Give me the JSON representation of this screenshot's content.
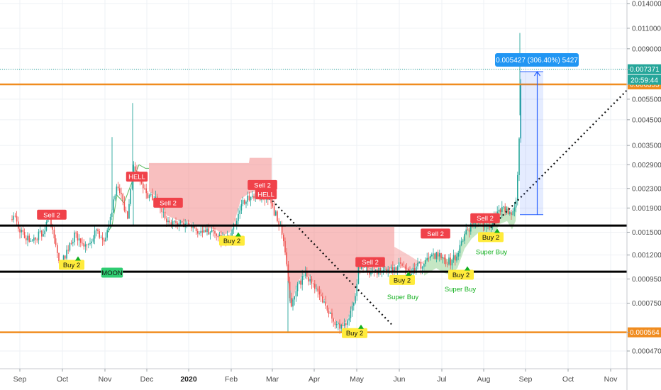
{
  "chart_data": {
    "type": "candlestick",
    "symbol_price_scale": "log",
    "y_ticks": [
      "0.014000",
      "0.011000",
      "0.009000",
      "0.007371",
      "0.006355",
      "0.005500",
      "0.004500",
      "0.003500",
      "0.002900",
      "0.002300",
      "0.001900",
      "0.001500",
      "0.001200",
      "0.000950",
      "0.000750",
      "0.000564",
      "0.000470"
    ],
    "x_ticks": [
      "Sep",
      "Oct",
      "Nov",
      "Dec",
      "2020",
      "Feb",
      "Mar",
      "Apr",
      "May",
      "Jun",
      "Jul",
      "Aug",
      "Sep",
      "Oct",
      "Nov"
    ],
    "current_price": "0.007371",
    "countdown": "20:59:44",
    "horizontal_levels": [
      {
        "price": "0.006355",
        "color": "#f08c1f",
        "label": "0.006355"
      },
      {
        "price": "0.000564",
        "color": "#f08c1f",
        "label": "0.000564"
      },
      {
        "price": "0.001600",
        "color": "#000000"
      },
      {
        "price": "0.001020",
        "color": "#000000"
      }
    ],
    "measure_label": "0.005427 (306.40%) 5427",
    "signals": [
      {
        "text": "Sell 2",
        "type": "sell"
      },
      {
        "text": "HELL",
        "type": "sell"
      },
      {
        "text": "Sell 2",
        "type": "sell"
      },
      {
        "text": "Sell 2",
        "type": "sell"
      },
      {
        "text": "HELL",
        "type": "sell"
      },
      {
        "text": "Sell 2",
        "type": "sell"
      },
      {
        "text": "Sell 2",
        "type": "sell"
      },
      {
        "text": "Sell 2",
        "type": "sell"
      },
      {
        "text": "Buy 2",
        "type": "buy"
      },
      {
        "text": "Buy 2",
        "type": "buy"
      },
      {
        "text": "Buy 2",
        "type": "buy"
      },
      {
        "text": "Buy 2",
        "type": "buy"
      },
      {
        "text": "Buy 2",
        "type": "buy"
      },
      {
        "text": "Buy 2",
        "type": "buy"
      },
      {
        "text": "MOON",
        "type": "moon"
      },
      {
        "text": "Super Buy",
        "type": "super"
      },
      {
        "text": "Super Buy",
        "type": "super"
      },
      {
        "text": "Super Buy",
        "type": "super"
      }
    ],
    "colors": {
      "up": "#26a69a",
      "down": "#ef5350",
      "cloud": "#f28b8b",
      "cloud_green": "#8ccf8a",
      "orange": "#f08c1f",
      "measure": "#2962ff",
      "label_blue": "#2196f3"
    }
  }
}
